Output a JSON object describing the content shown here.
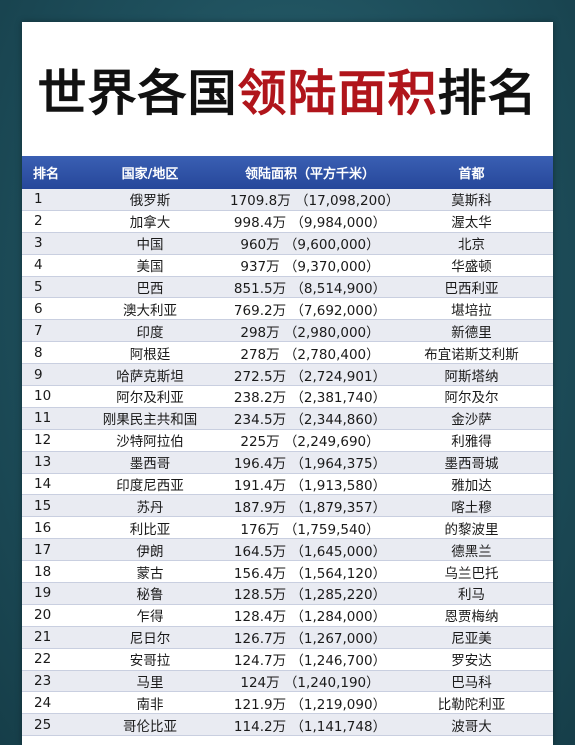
{
  "title": {
    "part1": "世界各国",
    "part2": "领陆面积",
    "part3": "排名"
  },
  "headers": {
    "rank": "排名",
    "country": "国家/地区",
    "area": "领陆面积（平方千米）",
    "capital": "首都"
  },
  "rows": [
    {
      "rank": "1",
      "country": "俄罗斯",
      "area": "1709.8万 （17,098,200）",
      "capital": "莫斯科"
    },
    {
      "rank": "2",
      "country": "加拿大",
      "area": "998.4万 （9,984,000）",
      "capital": "渥太华"
    },
    {
      "rank": "3",
      "country": "中国",
      "area": "960万 （9,600,000）",
      "capital": "北京"
    },
    {
      "rank": "4",
      "country": "美国",
      "area": "937万 （9,370,000）",
      "capital": "华盛顿"
    },
    {
      "rank": "5",
      "country": "巴西",
      "area": "851.5万 （8,514,900）",
      "capital": "巴西利亚"
    },
    {
      "rank": "6",
      "country": "澳大利亚",
      "area": "769.2万 （7,692,000）",
      "capital": "堪培拉"
    },
    {
      "rank": "7",
      "country": "印度",
      "area": "298万 （2,980,000）",
      "capital": "新德里"
    },
    {
      "rank": "8",
      "country": "阿根廷",
      "area": "278万 （2,780,400）",
      "capital": "布宜诺斯艾利斯"
    },
    {
      "rank": "9",
      "country": "哈萨克斯坦",
      "area": "272.5万 （2,724,901）",
      "capital": "阿斯塔纳"
    },
    {
      "rank": "10",
      "country": "阿尔及利亚",
      "area": "238.2万 （2,381,740）",
      "capital": "阿尔及尔"
    },
    {
      "rank": "11",
      "country": "刚果民主共和国",
      "area": "234.5万 （2,344,860）",
      "capital": "金沙萨"
    },
    {
      "rank": "12",
      "country": "沙特阿拉伯",
      "area": "225万 （2,249,690）",
      "capital": "利雅得"
    },
    {
      "rank": "13",
      "country": "墨西哥",
      "area": "196.4万 （1,964,375）",
      "capital": "墨西哥城"
    },
    {
      "rank": "14",
      "country": "印度尼西亚",
      "area": "191.4万 （1,913,580）",
      "capital": "雅加达"
    },
    {
      "rank": "15",
      "country": "苏丹",
      "area": "187.9万 （1,879,357）",
      "capital": "喀土穆"
    },
    {
      "rank": "16",
      "country": "利比亚",
      "area": "176万 （1,759,540）",
      "capital": "的黎波里"
    },
    {
      "rank": "17",
      "country": "伊朗",
      "area": "164.5万 （1,645,000）",
      "capital": "德黑兰"
    },
    {
      "rank": "18",
      "country": "蒙古",
      "area": "156.4万 （1,564,120）",
      "capital": "乌兰巴托"
    },
    {
      "rank": "19",
      "country": "秘鲁",
      "area": "128.5万 （1,285,220）",
      "capital": "利马"
    },
    {
      "rank": "20",
      "country": "乍得",
      "area": "128.4万 （1,284,000）",
      "capital": "恩贾梅纳"
    },
    {
      "rank": "21",
      "country": "尼日尔",
      "area": "126.7万 （1,267,000）",
      "capital": "尼亚美"
    },
    {
      "rank": "22",
      "country": "安哥拉",
      "area": "124.7万 （1,246,700）",
      "capital": "罗安达"
    },
    {
      "rank": "23",
      "country": "马里",
      "area": "124万 （1,240,190）",
      "capital": "巴马科"
    },
    {
      "rank": "24",
      "country": "南非",
      "area": "121.9万 （1,219,090）",
      "capital": "比勒陀利亚"
    },
    {
      "rank": "25",
      "country": "哥伦比亚",
      "area": "114.2万 （1,141,748）",
      "capital": "波哥大"
    }
  ]
}
